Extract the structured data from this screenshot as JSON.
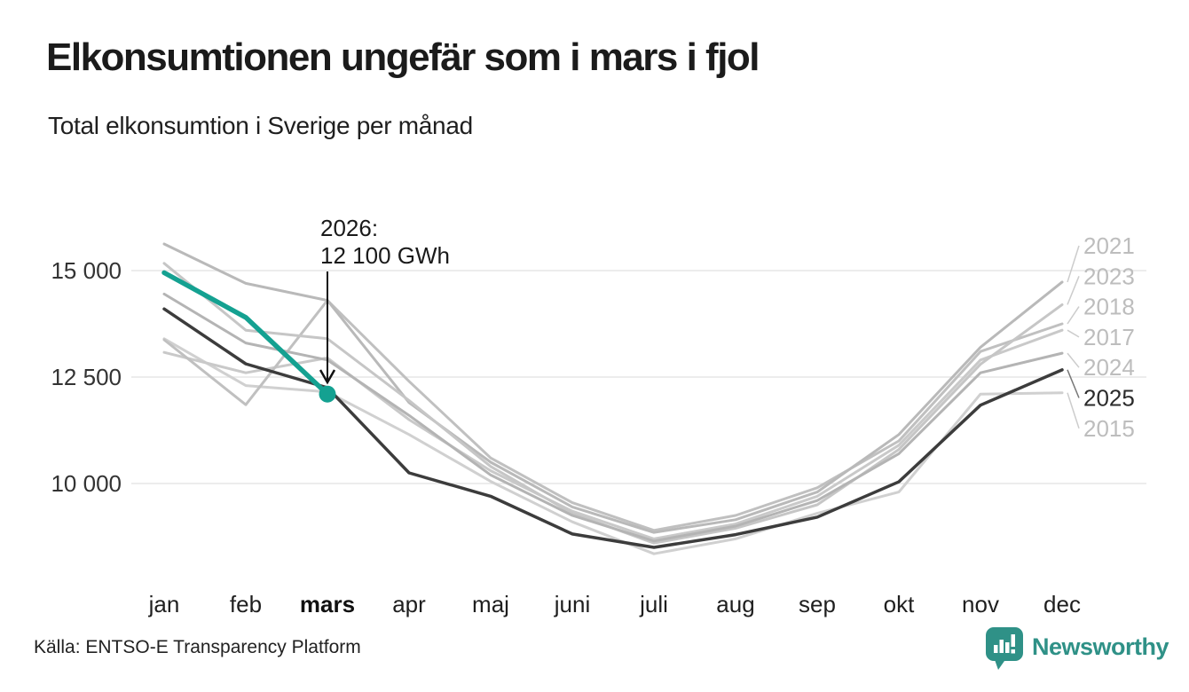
{
  "header": {
    "title": "Elkonsumtionen ungefär som i mars i fjol",
    "subtitle": "Total elkonsumtion i Sverige per månad"
  },
  "footer": {
    "source": "Källa: ENTSO-E Transparency Platform",
    "brand": "Newsworthy"
  },
  "colors": {
    "accent": "#14a191",
    "previous_year": "#3c3c3c",
    "context_gray": "#c3c3c3",
    "grid": "#e6e6e6",
    "tick_text": "#333333",
    "month_text": "#1f1f1f",
    "end_label_gray": "#bdbdbd",
    "end_label_dark": "#2b2b2b",
    "leader": "#cccccc",
    "leader_dark": "#777777",
    "annotation_text": "#1a1a1a",
    "brand_teal": "#2f9187"
  },
  "chart_data": {
    "type": "line",
    "title": "Elkonsumtionen ungefär som i mars i fjol",
    "subtitle": "Total elkonsumtion i Sverige per månad",
    "unit": "GWh",
    "categories": [
      "jan",
      "feb",
      "mars",
      "apr",
      "maj",
      "juni",
      "juli",
      "aug",
      "sep",
      "okt",
      "nov",
      "dec"
    ],
    "highlighted_month": "mars",
    "yticks": [
      {
        "value": 15000,
        "label": "15 000"
      },
      {
        "value": 12500,
        "label": "12 500"
      },
      {
        "value": 10000,
        "label": "10 000"
      }
    ],
    "ylim": [
      8200,
      15700
    ],
    "grid": true,
    "legend_position": "right-end-labels",
    "series": [
      {
        "name": "2015",
        "color": "#d0d0d0",
        "width": 3,
        "labeled": true,
        "label_color": "#bdbdbd",
        "values": [
          13400,
          12300,
          12150,
          11150,
          10050,
          9100,
          8350,
          8700,
          9300,
          9800,
          12100,
          12130
        ]
      },
      {
        "name": "2017",
        "color": "#c9c9c9",
        "width": 3,
        "labeled": true,
        "label_color": "#bdbdbd",
        "values": [
          13080,
          12600,
          12950,
          11500,
          10300,
          9350,
          8700,
          9050,
          9700,
          10900,
          12900,
          13600
        ]
      },
      {
        "name": "2018",
        "color": "#c0c0c0",
        "width": 3,
        "labeled": true,
        "label_color": "#bdbdbd",
        "values": [
          13375,
          11850,
          14300,
          12400,
          10600,
          9550,
          8900,
          9250,
          9900,
          11000,
          13100,
          13750
        ]
      },
      {
        "name": "2021",
        "color": "#b9b9b9",
        "width": 3,
        "labeled": true,
        "label_color": "#bdbdbd",
        "values": [
          15625,
          14700,
          14300,
          11900,
          10500,
          9450,
          8850,
          9150,
          9800,
          11150,
          13200,
          14730
        ]
      },
      {
        "name": "2023",
        "color": "#c6c6c6",
        "width": 3,
        "labeled": true,
        "label_color": "#bdbdbd",
        "values": [
          15170,
          13600,
          13400,
          11950,
          10400,
          9300,
          8600,
          8950,
          9500,
          10800,
          12800,
          14200
        ]
      },
      {
        "name": "2024",
        "color": "#b4b4b4",
        "width": 3,
        "labeled": true,
        "label_color": "#bdbdbd",
        "values": [
          14450,
          13300,
          12900,
          11600,
          10200,
          9250,
          8650,
          9000,
          9600,
          10700,
          12600,
          13060
        ]
      },
      {
        "name": "2025",
        "color": "#3c3c3c",
        "width": 3.5,
        "labeled": true,
        "label_color": "#2b2b2b",
        "values": [
          14100,
          12810,
          12250,
          10250,
          9700,
          8815,
          8500,
          8800,
          9210,
          10040,
          11840,
          12670
        ]
      },
      {
        "name": "2026",
        "color": "#14a191",
        "width": 5.5,
        "labeled": false,
        "label_color": "#14a191",
        "values": [
          14950,
          13900,
          12100
        ]
      }
    ],
    "annotation": {
      "lines": [
        "2026:",
        "12 100 GWh"
      ],
      "series": "2026",
      "month": "mars",
      "value": 12100
    }
  }
}
